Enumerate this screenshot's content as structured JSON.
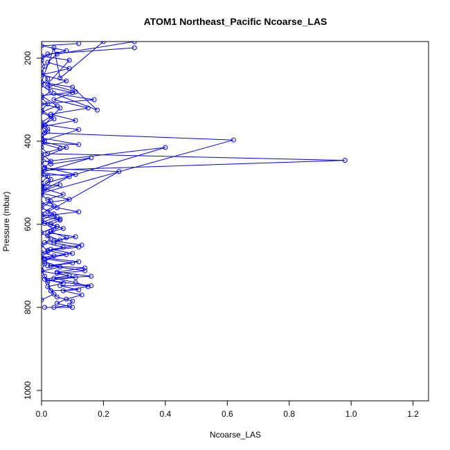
{
  "chart_data": {
    "type": "line",
    "title": "ATOM1 Northeast_Pacific Ncoarse_LAS",
    "xlabel": "Ncoarse_LAS",
    "ylabel": "Pressure (mbar)",
    "xlim": [
      0.0,
      1.25
    ],
    "ylim": [
      1025,
      160
    ],
    "y_reversed": true,
    "x_ticks": [
      {
        "v": 0.0,
        "label": "0.0"
      },
      {
        "v": 0.2,
        "label": "0.2"
      },
      {
        "v": 0.4,
        "label": "0.4"
      },
      {
        "v": 0.6,
        "label": "0.6"
      },
      {
        "v": 0.8,
        "label": "0.8"
      },
      {
        "v": 1.0,
        "label": "1.0"
      },
      {
        "v": 1.2,
        "label": "1.2"
      }
    ],
    "y_ticks": [
      {
        "v": 200,
        "label": "200"
      },
      {
        "v": 400,
        "label": "400"
      },
      {
        "v": 600,
        "label": "600"
      },
      {
        "v": 800,
        "label": "800"
      },
      {
        "v": 1000,
        "label": "1000"
      }
    ],
    "series_color": "#0000ff",
    "marker": "open-circle",
    "grid": false,
    "legend": "none",
    "series": [
      {
        "values": [
          [
            0.04,
            800
          ],
          [
            0.09,
            795
          ],
          [
            0.1,
            785
          ],
          [
            0.05,
            775
          ],
          [
            0.03,
            760
          ],
          [
            0.02,
            740
          ],
          [
            0.01,
            725
          ],
          [
            0.0,
            710
          ],
          [
            0.01,
            695
          ],
          [
            0.0,
            680
          ],
          [
            0.02,
            665
          ],
          [
            0.0,
            650
          ],
          [
            0.03,
            635
          ],
          [
            0.0,
            620
          ],
          [
            0.05,
            605
          ],
          [
            0.0,
            590
          ],
          [
            0.04,
            575
          ],
          [
            0.0,
            560
          ],
          [
            0.03,
            545
          ],
          [
            0.0,
            530
          ],
          [
            0.01,
            515
          ],
          [
            0.0,
            500
          ],
          [
            0.02,
            485
          ],
          [
            0.0,
            470
          ],
          [
            0.98,
            446
          ],
          [
            0.02,
            430
          ],
          [
            0.0,
            415
          ],
          [
            0.01,
            400
          ],
          [
            0.0,
            385
          ],
          [
            0.02,
            370
          ],
          [
            0.0,
            355
          ],
          [
            0.03,
            340
          ],
          [
            0.0,
            325
          ],
          [
            0.02,
            310
          ],
          [
            0.0,
            295
          ],
          [
            0.03,
            280
          ],
          [
            0.0,
            265
          ],
          [
            0.02,
            250
          ],
          [
            0.0,
            235
          ],
          [
            0.01,
            220
          ],
          [
            0.0,
            205
          ],
          [
            0.02,
            190
          ],
          [
            0.3,
            175
          ]
        ]
      },
      {
        "values": [
          [
            0.01,
            800
          ],
          [
            0.1,
            800
          ],
          [
            0.05,
            790
          ],
          [
            0.08,
            780
          ],
          [
            0.13,
            770
          ],
          [
            0.07,
            760
          ],
          [
            0.15,
            750
          ],
          [
            0.11,
            740
          ],
          [
            0.04,
            730
          ],
          [
            0.16,
            725
          ],
          [
            0.05,
            715
          ],
          [
            0.14,
            705
          ],
          [
            0.02,
            700
          ],
          [
            0.12,
            690
          ],
          [
            0.0,
            680
          ],
          [
            0.1,
            670
          ],
          [
            0.03,
            660
          ],
          [
            0.13,
            650
          ],
          [
            0.04,
            640
          ],
          [
            0.11,
            630
          ],
          [
            0.02,
            620
          ],
          [
            0.07,
            610
          ],
          [
            0.03,
            600
          ],
          [
            0.06,
            590
          ],
          [
            0.0,
            580
          ],
          [
            0.12,
            570
          ],
          [
            0.05,
            560
          ],
          [
            0.0,
            550
          ],
          [
            0.09,
            540
          ],
          [
            0.0,
            525
          ],
          [
            0.62,
            397
          ],
          [
            0.01,
            380
          ],
          [
            0.0,
            365
          ],
          [
            0.11,
            350
          ],
          [
            0.03,
            335
          ],
          [
            0.15,
            320
          ],
          [
            0.04,
            300
          ],
          [
            0.1,
            283
          ],
          [
            0.02,
            270
          ],
          [
            0.08,
            255
          ],
          [
            0.0,
            240
          ],
          [
            0.09,
            225
          ],
          [
            0.02,
            210
          ],
          [
            0.05,
            190
          ],
          [
            0.3,
            160
          ]
        ]
      },
      {
        "values": [
          [
            0.03,
            760
          ],
          [
            0.12,
            758
          ],
          [
            0.06,
            748
          ],
          [
            0.16,
            748
          ],
          [
            0.02,
            735
          ],
          [
            0.11,
            728
          ],
          [
            0.05,
            718
          ],
          [
            0.14,
            712
          ],
          [
            0.03,
            700
          ],
          [
            0.1,
            693
          ],
          [
            0.01,
            683
          ],
          [
            0.08,
            673
          ],
          [
            0.02,
            663
          ],
          [
            0.12,
            655
          ],
          [
            0.04,
            645
          ],
          [
            0.08,
            632
          ],
          [
            0.03,
            618
          ],
          [
            0.05,
            605
          ],
          [
            0.0,
            595
          ],
          [
            0.05,
            583
          ],
          [
            0.02,
            570
          ],
          [
            0.25,
            473
          ],
          [
            0.01,
            465
          ],
          [
            0.0,
            450
          ],
          [
            0.4,
            415
          ],
          [
            0.02,
            500
          ],
          [
            0.0,
            508
          ],
          [
            0.06,
            505
          ],
          [
            0.0,
            520
          ],
          [
            0.09,
            485
          ],
          [
            0.0,
            475
          ],
          [
            0.16,
            440
          ],
          [
            0.03,
            455
          ],
          [
            0.0,
            440
          ],
          [
            0.08,
            415
          ],
          [
            0.0,
            400
          ],
          [
            0.12,
            372
          ],
          [
            0.01,
            360
          ],
          [
            0.06,
            320
          ],
          [
            0.0,
            310
          ],
          [
            0.17,
            300
          ],
          [
            0.04,
            285
          ],
          [
            0.18,
            325
          ],
          [
            0.1,
            270
          ],
          [
            0.0,
            258
          ],
          [
            0.04,
            175
          ],
          [
            0.06,
            248
          ],
          [
            0.2,
            160
          ]
        ]
      },
      {
        "values": [
          [
            0.0,
            782
          ],
          [
            0.04,
            768
          ],
          [
            0.02,
            750
          ],
          [
            0.07,
            742
          ],
          [
            0.01,
            732
          ],
          [
            0.09,
            724
          ],
          [
            0.0,
            713
          ],
          [
            0.06,
            703
          ],
          [
            0.01,
            690
          ],
          [
            0.04,
            676
          ],
          [
            0.0,
            668
          ],
          [
            0.07,
            655
          ],
          [
            0.01,
            644
          ],
          [
            0.06,
            638
          ],
          [
            0.02,
            628
          ],
          [
            0.04,
            612
          ],
          [
            0.01,
            598
          ],
          [
            0.06,
            587
          ],
          [
            0.0,
            575
          ],
          [
            0.04,
            556
          ],
          [
            0.02,
            540
          ],
          [
            0.07,
            528
          ],
          [
            0.0,
            512
          ],
          [
            0.03,
            492
          ],
          [
            0.0,
            482
          ],
          [
            0.11,
            480
          ],
          [
            0.01,
            463
          ],
          [
            0.03,
            448
          ],
          [
            0.0,
            430
          ],
          [
            0.06,
            418
          ],
          [
            0.0,
            405
          ],
          [
            0.12,
            408
          ],
          [
            0.0,
            392
          ],
          [
            0.02,
            376
          ],
          [
            0.0,
            362
          ],
          [
            0.04,
            346
          ],
          [
            0.0,
            330
          ],
          [
            0.05,
            315
          ],
          [
            0.0,
            290
          ],
          [
            0.11,
            281
          ],
          [
            0.02,
            262
          ],
          [
            0.09,
            205
          ],
          [
            0.0,
            195
          ],
          [
            0.08,
            182
          ],
          [
            0.0,
            170
          ],
          [
            0.12,
            165
          ]
        ]
      }
    ]
  }
}
